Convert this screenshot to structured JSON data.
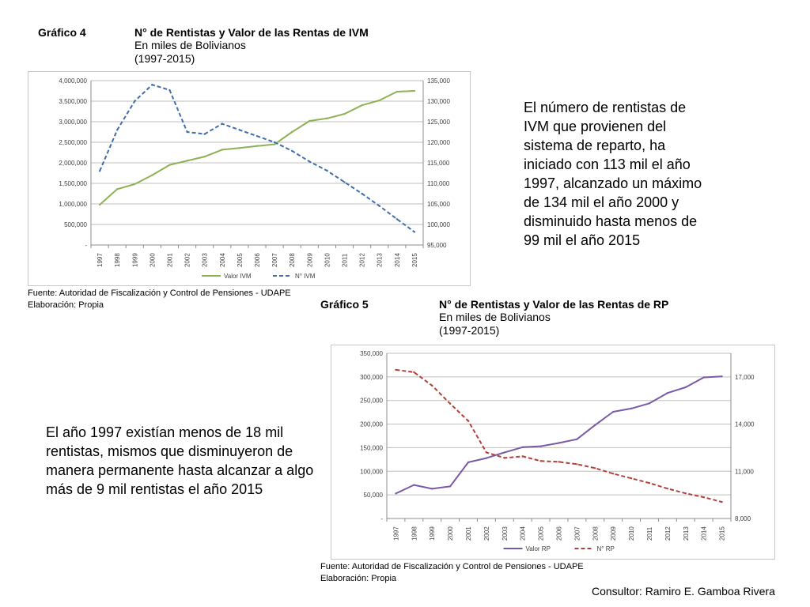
{
  "chart4": {
    "label": "Gráfico 4",
    "title": "N° de Rentistas y Valor de las Rentas de IVM",
    "subtitle": "En miles de Bolivianos",
    "period": "(1997-2015)",
    "source": "Fuente: Autoridad de Fiscalización y Control de Pensiones - UDAPE",
    "elaboration": "Elaboración: Propia"
  },
  "chart5": {
    "label": "Gráfico 5",
    "title": "N° de Rentistas y Valor de las Rentas de RP",
    "subtitle": "En miles de Bolivianos",
    "period": "(1997-2015)",
    "source": "Fuente: Autoridad de Fiscalización y Control de Pensiones - UDAPE",
    "elaboration": "Elaboración: Propia"
  },
  "text_ivm": "El número de rentistas de IVM que provienen del sistema de reparto, ha iniciado con 113 mil el año 1997, alcanzado un máximo de 134 mil el año 2000 y disminuido hasta menos de 99 mil el año 2015",
  "text_rp": "El año 1997 existían menos de 18 mil rentistas, mismos que disminuyeron de manera permanente hasta alcanzar a algo más de 9 mil rentistas el año 2015",
  "consultor": "Consultor: Ramiro E. Gamboa Rivera",
  "colors": {
    "green": "#8db255",
    "blue": "#3f6ea8",
    "purple": "#7a5aa6",
    "red": "#b2403a",
    "grid": "#bfbfbf",
    "axis_text": "#404040"
  },
  "chart_data": [
    {
      "type": "line",
      "x": [
        "1997",
        "1998",
        "1999",
        "2000",
        "2001",
        "2002",
        "2003",
        "2004",
        "2005",
        "2006",
        "2007",
        "2008",
        "2009",
        "2010",
        "2011",
        "2012",
        "2013",
        "2014",
        "2015"
      ],
      "series": [
        {
          "name": "Valor IVM",
          "axis": "left",
          "style": "solid",
          "values": [
            980000,
            1360000,
            1480000,
            1700000,
            1950000,
            2050000,
            2150000,
            2320000,
            2360000,
            2410000,
            2450000,
            2750000,
            3020000,
            3080000,
            3190000,
            3400000,
            3520000,
            3730000,
            3750000
          ]
        },
        {
          "name": "N° IVM",
          "axis": "right",
          "style": "dashed",
          "values": [
            113000,
            123000,
            130000,
            134000,
            132700,
            122500,
            122000,
            124500,
            123000,
            121500,
            120000,
            117900,
            115300,
            113100,
            110300,
            107500,
            104500,
            101300,
            98200
          ]
        }
      ],
      "ylim_left": [
        0,
        4000000
      ],
      "ylim_right": [
        95000,
        135000
      ],
      "yticks_left": [
        "-",
        "500,000",
        "1,000,000",
        "1,500,000",
        "2,000,000",
        "2,500,000",
        "3,000,000",
        "3,500,000",
        "4,000,000"
      ],
      "yticks_right": [
        "95,000",
        "100,000",
        "105,000",
        "110,000",
        "115,000",
        "120,000",
        "125,000",
        "130,000",
        "135,000"
      ],
      "legend": "bottom",
      "grid": true
    },
    {
      "type": "line",
      "x": [
        "1997",
        "1998",
        "1999",
        "2000",
        "2001",
        "2002",
        "2003",
        "2004",
        "2005",
        "2006",
        "2007",
        "2008",
        "2009",
        "2010",
        "2011",
        "2012",
        "2013",
        "2014",
        "2015"
      ],
      "series": [
        {
          "name": "Valor RP",
          "axis": "left",
          "style": "solid",
          "values": [
            53000,
            71000,
            63000,
            68000,
            119000,
            128000,
            140000,
            151000,
            153000,
            160000,
            168000,
            198000,
            226000,
            233000,
            244000,
            266000,
            278000,
            299000,
            301000
          ]
        },
        {
          "name": "N° RP",
          "axis": "right",
          "style": "dashed",
          "values": [
            17450,
            17300,
            16450,
            15300,
            14200,
            12200,
            11850,
            11950,
            11650,
            11600,
            11450,
            11200,
            10850,
            10550,
            10250,
            9900,
            9600,
            9350,
            9050
          ]
        }
      ],
      "ylim_left": [
        0,
        350000
      ],
      "ylim_right": [
        8000,
        18500
      ],
      "yticks_left": [
        "-",
        "50,000",
        "100,000",
        "150,000",
        "200,000",
        "250,000",
        "300,000",
        "350,000"
      ],
      "yticks_right": [
        "8,000",
        "11,000",
        "14,000",
        "17,000"
      ],
      "yticks_right_values": [
        8000,
        11000,
        14000,
        17000
      ],
      "legend": "bottom",
      "grid": true
    }
  ]
}
